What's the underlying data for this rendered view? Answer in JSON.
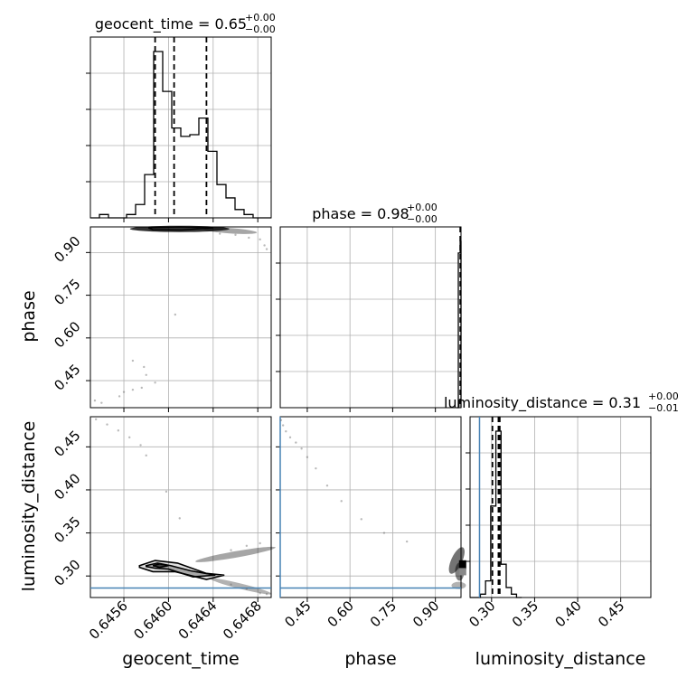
{
  "chart_data": {
    "type": "corner",
    "parameters": [
      "geocent_time",
      "phase",
      "luminosity_distance"
    ],
    "titles": [
      {
        "name": "geocent_time",
        "eq": " = ",
        "median": "0.65",
        "plus": "+0.00",
        "minus": "−0.00"
      },
      {
        "name": "phase",
        "eq": " = ",
        "median": "0.98",
        "plus": "+0.00",
        "minus": "−0.00"
      },
      {
        "name": "luminosity_distance",
        "eq": " = ",
        "median": "0.31",
        "plus": "+0.00",
        "minus": "−0.01"
      }
    ],
    "axis_labels": {
      "x": [
        "geocent_time",
        "phase",
        "luminosity_distance"
      ],
      "y": [
        "phase",
        "luminosity_distance"
      ]
    },
    "ranges": {
      "geocent_time": [
        0.6453,
        0.64692
      ],
      "phase": [
        0.355,
        0.99
      ],
      "luminosity_distance": [
        0.275,
        0.485
      ]
    },
    "ticks": {
      "geocent_time": {
        "values": [
          0.6456,
          0.646,
          0.6464,
          0.6468
        ],
        "labels": [
          "0.6456",
          "0.6460",
          "0.6464",
          "0.6468"
        ]
      },
      "phase": {
        "values": [
          0.45,
          0.6,
          0.75,
          0.9
        ],
        "labels": [
          "0.45",
          "0.60",
          "0.75",
          "0.90"
        ]
      },
      "luminosity_distance": {
        "values": [
          0.3,
          0.35,
          0.4,
          0.45
        ],
        "labels": [
          "0.30",
          "0.35",
          "0.40",
          "0.45"
        ]
      }
    },
    "truths": {
      "phase": 0.355,
      "luminosity_distance": 0.286
    },
    "truth_color": "#4682b4",
    "grid": true,
    "histograms": {
      "geocent_time": {
        "edges": [
          0.6453,
          0.645381,
          0.645462,
          0.645543,
          0.645624,
          0.645705,
          0.645786,
          0.645867,
          0.645948,
          0.646029,
          0.64611,
          0.646191,
          0.646272,
          0.646353,
          0.646434,
          0.646515,
          0.646596,
          0.646677,
          0.646758,
          0.646839,
          0.64692
        ],
        "counts": [
          0,
          0.02,
          0,
          0,
          0.02,
          0.08,
          0.26,
          1.0,
          0.76,
          0.54,
          0.49,
          0.5,
          0.6,
          0.4,
          0.2,
          0.12,
          0.05,
          0.02,
          0,
          0
        ],
        "quantiles": [
          0.64588,
          0.64605,
          0.64634
        ]
      },
      "phase": {
        "edges": [
          0.974,
          0.9805,
          0.987,
          0.99
        ],
        "counts": [
          0,
          0.93,
          1.0
        ],
        "quantiles": [
          0.9875,
          0.988,
          0.9885
        ]
      },
      "luminosity_distance": {
        "edges": [
          0.275,
          0.281,
          0.287,
          0.293,
          0.299,
          0.305,
          0.311,
          0.317,
          0.323,
          0.329,
          0.335
        ],
        "counts": [
          0,
          0,
          0.02,
          0.1,
          0.55,
          1.0,
          0.2,
          0.06,
          0.02,
          0
        ],
        "quantiles": [
          0.301,
          0.308,
          0.3095
        ]
      }
    },
    "scatter": {
      "phase_vs_geocent_time": [
        [
          0.64534,
          0.38
        ],
        [
          0.6454,
          0.372
        ],
        [
          0.6456,
          0.41
        ],
        [
          0.64556,
          0.395
        ],
        [
          0.64568,
          0.418
        ],
        [
          0.64576,
          0.425
        ],
        [
          0.64588,
          0.443
        ],
        [
          0.6458,
          0.47
        ],
        [
          0.64568,
          0.52
        ],
        [
          0.64578,
          0.498
        ],
        [
          0.64606,
          0.682
        ],
        [
          0.64646,
          0.966
        ],
        [
          0.6466,
          0.962
        ],
        [
          0.64672,
          0.952
        ],
        [
          0.64682,
          0.946
        ],
        [
          0.64686,
          0.925
        ],
        [
          0.64688,
          0.912
        ]
      ],
      "luminosity_distance_vs_geocent_time": [
        [
          0.64535,
          0.482
        ],
        [
          0.64545,
          0.476
        ],
        [
          0.64555,
          0.469
        ],
        [
          0.64565,
          0.461
        ],
        [
          0.64575,
          0.452
        ],
        [
          0.6458,
          0.44
        ],
        [
          0.64598,
          0.398
        ],
        [
          0.6461,
          0.367
        ],
        [
          0.64656,
          0.33
        ],
        [
          0.6467,
          0.335
        ],
        [
          0.64682,
          0.338
        ],
        [
          0.64656,
          0.29
        ],
        [
          0.6467,
          0.285
        ],
        [
          0.64682,
          0.28
        ],
        [
          0.64688,
          0.279
        ]
      ],
      "luminosity_distance_vs_phase": [
        [
          0.358,
          0.481
        ],
        [
          0.365,
          0.475
        ],
        [
          0.375,
          0.468
        ],
        [
          0.39,
          0.461
        ],
        [
          0.41,
          0.455
        ],
        [
          0.43,
          0.448
        ],
        [
          0.45,
          0.438
        ],
        [
          0.48,
          0.425
        ],
        [
          0.52,
          0.405
        ],
        [
          0.57,
          0.387
        ],
        [
          0.64,
          0.366
        ],
        [
          0.72,
          0.35
        ],
        [
          0.8,
          0.34
        ]
      ]
    },
    "contours": {
      "luminosity_distance_vs_geocent_time": [
        [
          [
            0.64574,
            0.312
          ],
          [
            0.64588,
            0.318
          ],
          [
            0.64608,
            0.315
          ],
          [
            0.64634,
            0.303
          ],
          [
            0.6465,
            0.301
          ],
          [
            0.64634,
            0.296
          ],
          [
            0.64606,
            0.305
          ],
          [
            0.64586,
            0.305
          ],
          [
            0.64574,
            0.31
          ]
        ],
        [
          [
            0.6458,
            0.312
          ],
          [
            0.6459,
            0.315
          ],
          [
            0.64602,
            0.312
          ],
          [
            0.6462,
            0.306
          ],
          [
            0.64642,
            0.301
          ],
          [
            0.64622,
            0.299
          ],
          [
            0.646,
            0.308
          ],
          [
            0.64588,
            0.309
          ],
          [
            0.6458,
            0.311
          ]
        ],
        [
          [
            0.64586,
            0.312
          ],
          [
            0.64592,
            0.314
          ],
          [
            0.646,
            0.312
          ],
          [
            0.64592,
            0.31
          ],
          [
            0.64586,
            0.312
          ]
        ]
      ]
    }
  }
}
